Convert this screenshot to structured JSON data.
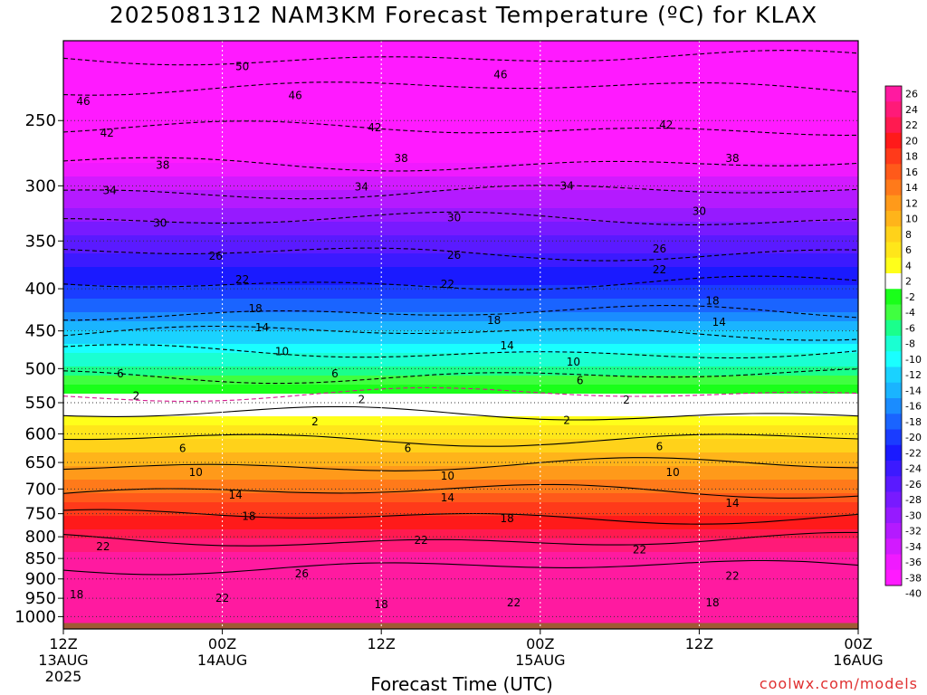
{
  "title": "2025081312 NAM3KM Forecast Temperature (ºC) for KLAX",
  "xlabel": "Forecast Time (UTC)",
  "credit": "coolwx.com/models",
  "chart_data": {
    "type": "heatmap",
    "title": "2025081312 NAM3KM Forecast Temperature (ºC) for KLAX",
    "xlabel": "Forecast Time (UTC)",
    "ylabel": "",
    "y_scale": "log",
    "y_inverted": true,
    "ylim": [
      1035,
      200
    ],
    "y_ticks": [
      250,
      300,
      350,
      400,
      450,
      500,
      550,
      600,
      650,
      700,
      750,
      800,
      850,
      900,
      950,
      1000
    ],
    "xlim_hours": [
      0,
      60
    ],
    "x_ticks": [
      {
        "hour": 0,
        "label": [
          "12Z",
          "13AUG",
          "2025"
        ]
      },
      {
        "hour": 12,
        "label": [
          "00Z",
          "14AUG"
        ]
      },
      {
        "hour": 24,
        "label": [
          "12Z"
        ]
      },
      {
        "hour": 36,
        "label": [
          "00Z",
          "15AUG"
        ]
      },
      {
        "hour": 48,
        "label": [
          "12Z"
        ]
      },
      {
        "hour": 60,
        "label": [
          "00Z",
          "16AUG"
        ]
      }
    ],
    "colorbar": {
      "labels": [
        "26",
        "24",
        "22",
        "20",
        "18",
        "16",
        "14",
        "12",
        "10",
        "8",
        "6",
        "4",
        "2",
        "-2",
        "-4",
        "-6",
        "-8",
        "-10",
        "-12",
        "-14",
        "-16",
        "-18",
        "-20",
        "-22",
        "-24",
        "-26",
        "-28",
        "-30",
        "-32",
        "-34",
        "-36",
        "-38",
        "-40"
      ],
      "colors": [
        "#ff1aa0",
        "#ff1a78",
        "#ff1a50",
        "#ff1a1a",
        "#ff3a1a",
        "#ff5a1a",
        "#ff7a1a",
        "#ff9a1a",
        "#ffb41a",
        "#ffd21a",
        "#ffe61a",
        "#ffff1a",
        "#ffffff",
        "#1aff1a",
        "#40ff40",
        "#1aff8c",
        "#1affd2",
        "#1affff",
        "#1ad2ff",
        "#1ab4ff",
        "#1a8cff",
        "#1a64ff",
        "#1a3cff",
        "#1a1aff",
        "#3c1aff",
        "#5a1aff",
        "#781aff",
        "#961aff",
        "#b41aff",
        "#d21aff",
        "#f01aff",
        "#ff1aff"
      ]
    },
    "isotherms": [
      {
        "value": -50,
        "pressure": 210
      },
      {
        "value": -46,
        "pressure": 228
      },
      {
        "value": -42,
        "pressure": 256
      },
      {
        "value": -38,
        "pressure": 282
      },
      {
        "value": -34,
        "pressure": 305
      },
      {
        "value": -30,
        "pressure": 330
      },
      {
        "value": -26,
        "pressure": 362
      },
      {
        "value": -22,
        "pressure": 394
      },
      {
        "value": -18,
        "pressure": 428
      },
      {
        "value": -14,
        "pressure": 452
      },
      {
        "value": -10,
        "pressure": 478
      },
      {
        "value": -6,
        "pressure": 510
      },
      {
        "value": -2,
        "pressure": 538
      },
      {
        "value": 2,
        "pressure": 568
      },
      {
        "value": 6,
        "pressure": 608
      },
      {
        "value": 10,
        "pressure": 655
      },
      {
        "value": 14,
        "pressure": 705
      },
      {
        "value": 18,
        "pressure": 756
      },
      {
        "value": 22,
        "pressure": 808
      },
      {
        "value": 26,
        "pressure": 870
      }
    ],
    "contour_labels": [
      {
        "text": "50",
        "hour": 13.5,
        "pressure": 215
      },
      {
        "text": "46",
        "hour": 33,
        "pressure": 220
      },
      {
        "text": "46",
        "hour": 1.5,
        "pressure": 237
      },
      {
        "text": "46",
        "hour": 17.5,
        "pressure": 233
      },
      {
        "text": "42",
        "hour": 3.3,
        "pressure": 259
      },
      {
        "text": "42",
        "hour": 23.5,
        "pressure": 255
      },
      {
        "text": "42",
        "hour": 45.5,
        "pressure": 253
      },
      {
        "text": "38",
        "hour": 7.5,
        "pressure": 283
      },
      {
        "text": "38",
        "hour": 25.5,
        "pressure": 278
      },
      {
        "text": "38",
        "hour": 50.5,
        "pressure": 278
      },
      {
        "text": "34",
        "hour": 3.5,
        "pressure": 304
      },
      {
        "text": "34",
        "hour": 22.5,
        "pressure": 301
      },
      {
        "text": "34",
        "hour": 38,
        "pressure": 300
      },
      {
        "text": "30",
        "hour": 7.3,
        "pressure": 333
      },
      {
        "text": "30",
        "hour": 29.5,
        "pressure": 328
      },
      {
        "text": "30",
        "hour": 48,
        "pressure": 322
      },
      {
        "text": "26",
        "hour": 11.5,
        "pressure": 365
      },
      {
        "text": "26",
        "hour": 29.5,
        "pressure": 364
      },
      {
        "text": "26",
        "hour": 45,
        "pressure": 358
      },
      {
        "text": "22",
        "hour": 13.5,
        "pressure": 390
      },
      {
        "text": "22",
        "hour": 29,
        "pressure": 395
      },
      {
        "text": "22",
        "hour": 45,
        "pressure": 379
      },
      {
        "text": "18",
        "hour": 14.5,
        "pressure": 423
      },
      {
        "text": "18",
        "hour": 32.5,
        "pressure": 437
      },
      {
        "text": "18",
        "hour": 49,
        "pressure": 414
      },
      {
        "text": "14",
        "hour": 15,
        "pressure": 446
      },
      {
        "text": "14",
        "hour": 33.5,
        "pressure": 469
      },
      {
        "text": "14",
        "hour": 49.5,
        "pressure": 439
      },
      {
        "text": "10",
        "hour": 16.5,
        "pressure": 477
      },
      {
        "text": "10",
        "hour": 38.5,
        "pressure": 491
      },
      {
        "text": "6",
        "hour": 4.3,
        "pressure": 507
      },
      {
        "text": "6",
        "hour": 20.5,
        "pressure": 507
      },
      {
        "text": "6",
        "hour": 39,
        "pressure": 517
      },
      {
        "text": "2",
        "hour": 5.5,
        "pressure": 540
      },
      {
        "text": "2",
        "hour": 22.5,
        "pressure": 545
      },
      {
        "text": "2",
        "hour": 42.5,
        "pressure": 546
      },
      {
        "text": "2",
        "hour": 19,
        "pressure": 580
      },
      {
        "text": "2",
        "hour": 38,
        "pressure": 578
      },
      {
        "text": "6",
        "hour": 9,
        "pressure": 625
      },
      {
        "text": "6",
        "hour": 26,
        "pressure": 625
      },
      {
        "text": "6",
        "hour": 45,
        "pressure": 622
      },
      {
        "text": "10",
        "hour": 10,
        "pressure": 668
      },
      {
        "text": "10",
        "hour": 29,
        "pressure": 675
      },
      {
        "text": "10",
        "hour": 46,
        "pressure": 668
      },
      {
        "text": "14",
        "hour": 13,
        "pressure": 712
      },
      {
        "text": "14",
        "hour": 29,
        "pressure": 717
      },
      {
        "text": "14",
        "hour": 50.5,
        "pressure": 728
      },
      {
        "text": "18",
        "hour": 14,
        "pressure": 755
      },
      {
        "text": "18",
        "hour": 33.5,
        "pressure": 760
      },
      {
        "text": "22",
        "hour": 3,
        "pressure": 822
      },
      {
        "text": "22",
        "hour": 27,
        "pressure": 808
      },
      {
        "text": "22",
        "hour": 43.5,
        "pressure": 830
      },
      {
        "text": "26",
        "hour": 18,
        "pressure": 887
      },
      {
        "text": "22",
        "hour": 50.5,
        "pressure": 893
      },
      {
        "text": "18",
        "hour": 1,
        "pressure": 940
      },
      {
        "text": "22",
        "hour": 12,
        "pressure": 950
      },
      {
        "text": "18",
        "hour": 24,
        "pressure": 967
      },
      {
        "text": "22",
        "hour": 34,
        "pressure": 962
      },
      {
        "text": "18",
        "hour": 49,
        "pressure": 962
      }
    ],
    "grid": true,
    "colorbar_position": "right"
  }
}
